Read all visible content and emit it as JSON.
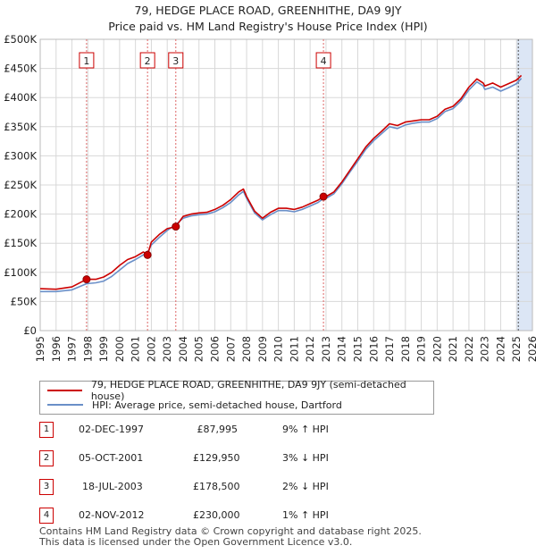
{
  "title_line1": "79, HEDGE PLACE ROAD, GREENHITHE, DA9 9JY",
  "title_line2": "Price paid vs. HM Land Registry's House Price Index (HPI)",
  "colors": {
    "property": "#cc0000",
    "hpi": "#6a8fc8",
    "shade": "#dce6f5",
    "grid": "#d8d8d8"
  },
  "legend": {
    "property_label": "79, HEDGE PLACE ROAD, GREENHITHE, DA9 9JY (semi-detached house)",
    "hpi_label": "HPI: Average price, semi-detached house, Dartford"
  },
  "sales": [
    {
      "n": "1",
      "date": "02-DEC-1997",
      "price": "£87,995",
      "delta": "9% ↑ HPI"
    },
    {
      "n": "2",
      "date": "05-OCT-2001",
      "price": "£129,950",
      "delta": "3% ↓ HPI"
    },
    {
      "n": "3",
      "date": "18-JUL-2003",
      "price": "£178,500",
      "delta": "2% ↓ HPI"
    },
    {
      "n": "4",
      "date": "02-NOV-2012",
      "price": "£230,000",
      "delta": "1% ↑ HPI"
    }
  ],
  "footer_line1": "Contains HM Land Registry data © Crown copyright and database right 2025.",
  "footer_line2": "This data is licensed under the Open Government Licence v3.0.",
  "chart_data": {
    "type": "line",
    "title": "79, HEDGE PLACE ROAD, GREENHITHE, DA9 9JY — Price paid vs. HPI",
    "xlabel": "",
    "ylabel": "",
    "xlim": [
      1995,
      2026
    ],
    "ylim": [
      0,
      500000
    ],
    "y_ticks": [
      0,
      50000,
      100000,
      150000,
      200000,
      250000,
      300000,
      350000,
      400000,
      450000,
      500000
    ],
    "y_tick_labels": [
      "£0",
      "£50K",
      "£100K",
      "£150K",
      "£200K",
      "£250K",
      "£300K",
      "£350K",
      "£400K",
      "£450K",
      "£500K"
    ],
    "x_ticks": [
      "1995",
      "1996",
      "1997",
      "1998",
      "1999",
      "2000",
      "2001",
      "2002",
      "2003",
      "2004",
      "2005",
      "2006",
      "2007",
      "2008",
      "2009",
      "2010",
      "2011",
      "2012",
      "2013",
      "2014",
      "2015",
      "2016",
      "2017",
      "2018",
      "2019",
      "2020",
      "2021",
      "2022",
      "2023",
      "2024",
      "2025",
      "2026"
    ],
    "series": [
      {
        "name": "79, HEDGE PLACE ROAD, GREENHITHE, DA9 9JY (semi-detached house)",
        "x": [
          1995,
          1996,
          1997,
          1997.92,
          1998.5,
          1999,
          1999.5,
          2000,
          2000.5,
          2001,
          2001.5,
          2001.76,
          2002,
          2002.5,
          2003,
          2003.54,
          2004,
          2004.5,
          2005,
          2005.5,
          2006,
          2006.5,
          2007,
          2007.5,
          2007.8,
          2008,
          2008.5,
          2009,
          2009.5,
          2010,
          2010.5,
          2011,
          2011.5,
          2012,
          2012.5,
          2012.84,
          2013,
          2013.5,
          2014,
          2014.5,
          2015,
          2015.5,
          2016,
          2016.5,
          2017,
          2017.5,
          2018,
          2018.5,
          2019,
          2019.5,
          2020,
          2020.5,
          2021,
          2021.5,
          2022,
          2022.5,
          2022.9,
          2023,
          2023.5,
          2024,
          2024.5,
          2025,
          2025.3
        ],
        "y": [
          72000,
          71000,
          75000,
          87995,
          88000,
          92000,
          100000,
          112000,
          122000,
          127000,
          135000,
          129950,
          152000,
          165000,
          175000,
          178500,
          196000,
          200000,
          202000,
          203000,
          208000,
          215000,
          225000,
          238000,
          243000,
          230000,
          205000,
          193000,
          203000,
          210000,
          210000,
          208000,
          212000,
          218000,
          224000,
          230000,
          230000,
          238000,
          255000,
          275000,
          295000,
          315000,
          330000,
          342000,
          355000,
          352000,
          358000,
          360000,
          362000,
          362000,
          368000,
          380000,
          385000,
          398000,
          418000,
          432000,
          425000,
          420000,
          425000,
          418000,
          424000,
          430000,
          438000
        ]
      },
      {
        "name": "HPI: Average price, semi-detached house, Dartford",
        "x": [
          1995,
          1996,
          1997,
          1997.92,
          1998.5,
          1999,
          1999.5,
          2000,
          2000.5,
          2001,
          2001.5,
          2001.76,
          2002,
          2002.5,
          2003,
          2003.54,
          2004,
          2004.5,
          2005,
          2005.5,
          2006,
          2006.5,
          2007,
          2007.5,
          2007.8,
          2008,
          2008.5,
          2009,
          2009.5,
          2010,
          2010.5,
          2011,
          2011.5,
          2012,
          2012.5,
          2012.84,
          2013,
          2013.5,
          2014,
          2014.5,
          2015,
          2015.5,
          2016,
          2016.5,
          2017,
          2017.5,
          2018,
          2018.5,
          2019,
          2019.5,
          2020,
          2020.5,
          2021,
          2021.5,
          2022,
          2022.5,
          2022.9,
          2023,
          2023.5,
          2024,
          2024.5,
          2025,
          2025.3
        ],
        "y": [
          67000,
          67000,
          70000,
          80500,
          82000,
          85000,
          93000,
          104000,
          115000,
          122000,
          130000,
          134000,
          147000,
          160000,
          172000,
          182000,
          193000,
          197000,
          199000,
          200000,
          204000,
          211000,
          220000,
          233000,
          239000,
          227000,
          202000,
          190000,
          199000,
          206000,
          206000,
          204000,
          208000,
          214000,
          220000,
          227000,
          227000,
          235000,
          252000,
          272000,
          291000,
          311000,
          326000,
          338000,
          350000,
          347000,
          353000,
          356000,
          358000,
          358000,
          364000,
          376000,
          381000,
          394000,
          413000,
          427000,
          420000,
          414000,
          418000,
          411000,
          417000,
          424000,
          433000
        ]
      }
    ],
    "sales_markers": [
      {
        "label": "1",
        "x": 1997.92,
        "y": 87995
      },
      {
        "label": "2",
        "x": 2001.76,
        "y": 129950
      },
      {
        "label": "3",
        "x": 2003.54,
        "y": 178500
      },
      {
        "label": "4",
        "x": 2012.84,
        "y": 230000
      }
    ],
    "shaded_region": {
      "from": 2025.0,
      "to": 2026
    }
  }
}
